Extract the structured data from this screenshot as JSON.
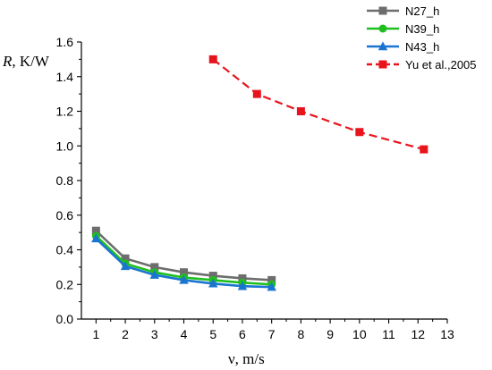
{
  "chart_data": {
    "type": "line",
    "title": "",
    "xlabel": "ν, m/s",
    "ylabel_var": "R",
    "ylabel_units": ", K/W",
    "xlim": [
      0.5,
      13
    ],
    "ylim": [
      0,
      1.6
    ],
    "xticks": [
      1,
      2,
      3,
      4,
      5,
      6,
      7,
      8,
      9,
      10,
      11,
      12,
      13
    ],
    "yticks": [
      0.0,
      0.2,
      0.4,
      0.6,
      0.8,
      1.0,
      1.2,
      1.4,
      1.6
    ],
    "grid": false,
    "legend_position": "top-right",
    "series": [
      {
        "name": "N27_h",
        "color": "#6d6d6d",
        "marker": "square",
        "dash": "solid",
        "x": [
          1,
          2,
          3,
          4,
          5,
          6,
          7
        ],
        "y": [
          0.51,
          0.35,
          0.3,
          0.27,
          0.25,
          0.235,
          0.225
        ]
      },
      {
        "name": "N39_h",
        "color": "#1fbf1f",
        "marker": "circle",
        "dash": "solid",
        "x": [
          1,
          2,
          3,
          4,
          5,
          6,
          7
        ],
        "y": [
          0.48,
          0.32,
          0.27,
          0.24,
          0.225,
          0.21,
          0.2
        ]
      },
      {
        "name": "N43_h",
        "color": "#1a75d1",
        "marker": "triangle",
        "dash": "solid",
        "x": [
          1,
          2,
          3,
          4,
          5,
          6,
          7
        ],
        "y": [
          0.465,
          0.305,
          0.255,
          0.225,
          0.205,
          0.19,
          0.185
        ]
      },
      {
        "name": "Yu et al.,2005",
        "color": "#e8141c",
        "marker": "square",
        "dash": "dashed",
        "x": [
          5,
          6.5,
          8,
          10,
          12.2
        ],
        "y": [
          1.5,
          1.3,
          1.2,
          1.08,
          0.98
        ]
      }
    ]
  }
}
